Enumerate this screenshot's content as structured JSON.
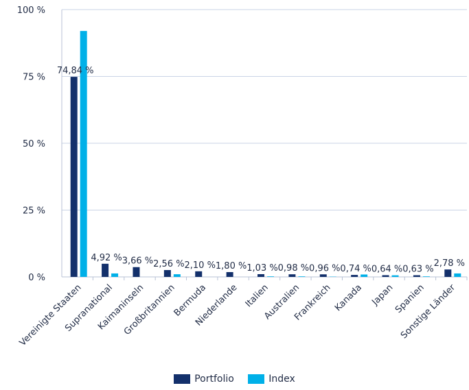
{
  "colors": {
    "portfolio": "#13306b",
    "index": "#00b0e8",
    "grid": "#c9d3e6",
    "axis": "#b8c2d6"
  },
  "chart_data": {
    "type": "bar",
    "categories": [
      "Vereinigte Staaten",
      "Supranational",
      "Kaimaninseln",
      "Großbritannien",
      "Bermuda",
      "Niederlande",
      "Italien",
      "Australien",
      "Frankreich",
      "Kanada",
      "Japan",
      "Spanien",
      "Sonstige Länder"
    ],
    "series": [
      {
        "name": "Portfolio",
        "values": [
          74.84,
          4.92,
          3.66,
          2.56,
          2.1,
          1.8,
          1.03,
          0.98,
          0.96,
          0.74,
          0.64,
          0.63,
          2.78
        ]
      },
      {
        "name": "Index",
        "values": [
          92.0,
          1.3,
          0.0,
          1.0,
          0.0,
          0.0,
          0.2,
          0.2,
          0.1,
          0.9,
          0.6,
          0.2,
          1.3
        ]
      }
    ],
    "data_labels": [
      "74,84 %",
      "4,92 %",
      "3,66 %",
      "2,56 %",
      "2,10 %",
      "1,80 %",
      "1,03 %",
      "0,98 %",
      "0,96 %",
      "0,74 %",
      "0,64 %",
      "0,63 %",
      "2,78 %"
    ],
    "ylim": [
      0,
      100
    ],
    "yticks": [
      0,
      25,
      50,
      75,
      100
    ],
    "ytick_labels": [
      "0 %",
      "25 %",
      "50 %",
      "75 %",
      "100 %"
    ],
    "grid": true,
    "legend": "bottom"
  },
  "legend": {
    "portfolio_label": "Portfolio",
    "index_label": "Index"
  }
}
